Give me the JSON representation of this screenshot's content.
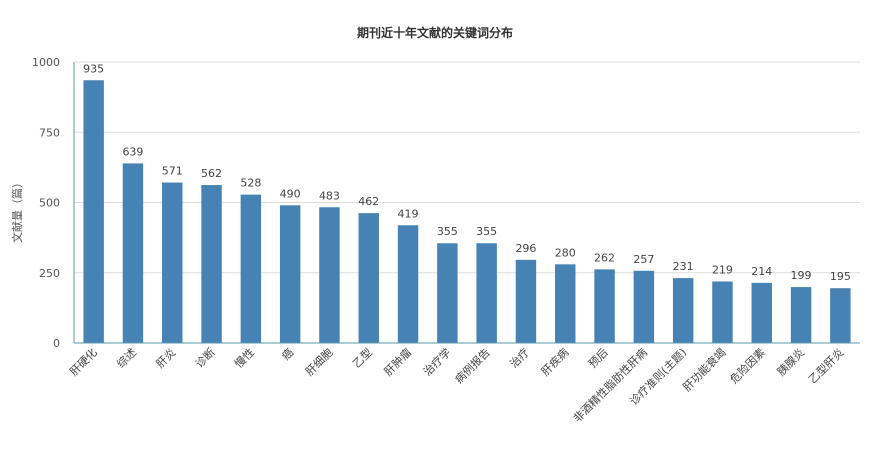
{
  "chart_data": {
    "type": "bar",
    "title": "期刊近十年文献的关键词分布",
    "xlabel": "",
    "ylabel": "文献量（篇）",
    "ylim": [
      0,
      1000
    ],
    "yticks": [
      0,
      250,
      500,
      750,
      1000
    ],
    "grid": true,
    "legend": "none",
    "bar_color": "#4682b4",
    "categories": [
      "肝硬化",
      "综述",
      "肝炎",
      "诊断",
      "慢性",
      "癌",
      "肝细胞",
      "乙型",
      "肝肿瘤",
      "治疗学",
      "病例报告",
      "治疗",
      "肝疾病",
      "预后",
      "非酒精性脂肪性肝病",
      "诊疗准则(主题)",
      "肝功能衰竭",
      "危险因素",
      "胰腺炎",
      "乙型肝炎"
    ],
    "values": [
      935,
      639,
      571,
      562,
      528,
      490,
      483,
      462,
      419,
      355,
      355,
      296,
      280,
      262,
      257,
      231,
      219,
      214,
      199,
      195
    ]
  }
}
